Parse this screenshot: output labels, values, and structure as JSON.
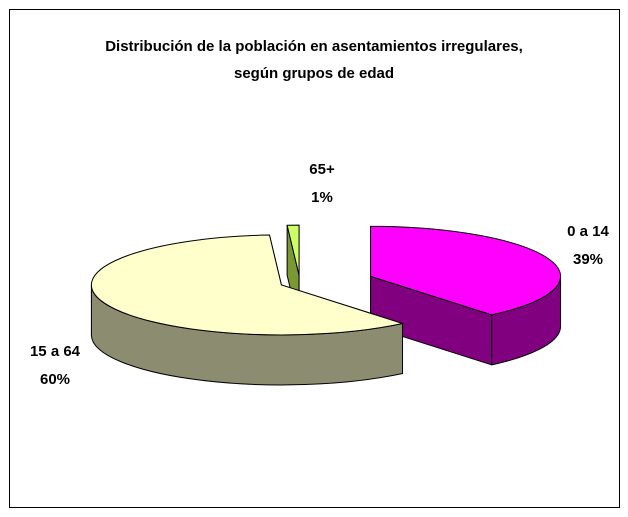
{
  "chart_data": {
    "type": "pie",
    "title": "Distribución de la población en asentamientos irregulares, según grupos de edad",
    "categories": [
      "0 a 14",
      "15 a 64",
      "65+"
    ],
    "values": [
      39,
      60,
      1
    ],
    "value_labels": [
      "39%",
      "60%",
      "1%"
    ],
    "colors": [
      "#ff00ff",
      "#ffffcc",
      "#ccff66"
    ],
    "side_colors": [
      "#800080",
      "#8c8c70",
      "#7a9933"
    ]
  }
}
